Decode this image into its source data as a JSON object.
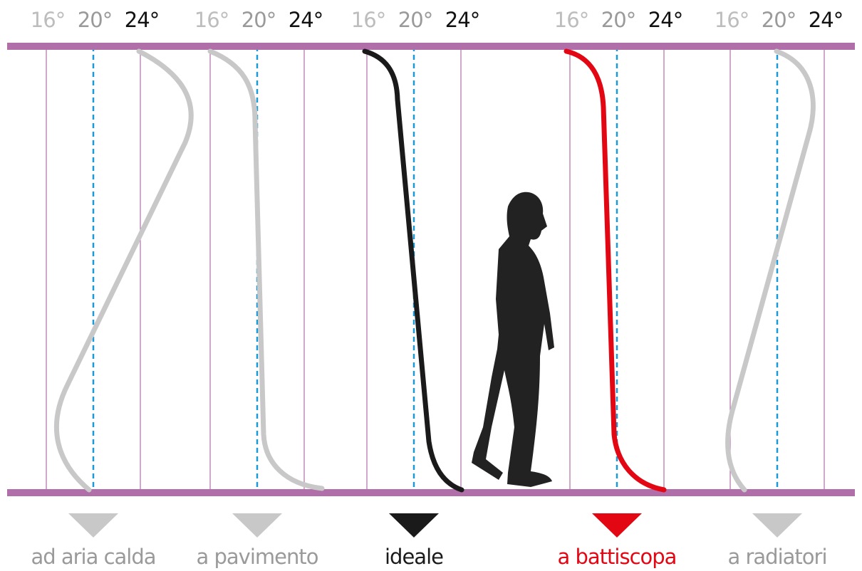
{
  "panels": [
    {
      "ticks": [
        "16°",
        "20°",
        "24°"
      ],
      "label": "ad aria calda",
      "color": "#c8c8c8"
    },
    {
      "ticks": [
        "16°",
        "20°",
        "24°"
      ],
      "label": "a pavimento",
      "color": "#c8c8c8"
    },
    {
      "ticks": [
        "16°",
        "20°",
        "24°"
      ],
      "label": "ideale",
      "color": "#1a1a1a"
    },
    {
      "ticks": [
        "16°",
        "20°",
        "24°"
      ],
      "label": "a battiscopa",
      "color": "#e30613"
    },
    {
      "ticks": [
        "16°",
        "20°",
        "24°"
      ],
      "label": "a radiatori",
      "color": "#c8c8c8"
    }
  ]
}
